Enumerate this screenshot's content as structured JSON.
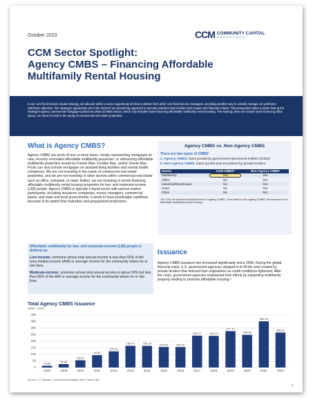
{
  "header": {
    "date": "October 2023",
    "logo_mark": "CCM",
    "logo_name": "COMMUNITY CAPITAL",
    "logo_sub": "MANAGEMENT"
  },
  "title": [
    "CCM Sector Spotlight:",
    "Agency CMBS – Financing Affordable",
    "Multifamily Rental Housing"
  ],
  "intro": "In our core fixed income impact strategy, we allocate within a sector opportunity set that is distinct from other core fixed income managers, providing another way to actively manage our portfolio's risk/return objective. Our strategy's opportunity set is the result of our pioneering approach to security selection that includes both impact and financial criteria. This perspective takes a closer look at the strategy's agency commercial mortgage-backed securities (CMBS) sector, which only includes loans financing affordable multifamily rental housing. The strategy does not include loans financing office space, nor does it invest in the equity of commercial real estate properties.",
  "what": {
    "heading": "What is Agency CMBS?",
    "body": "Agency CMBS are pools of one or more loans, mostly representing mortgages on new, recently renovated affordable multifamily properties, or refinancing affordable multifamily properties issued by Fannie Mae, Freddie Mac, and/or Ginnie Mae. Pools can also include mortgages on assisted living facilities and mental health complexes. We are not investing in the equity of commercial real estate properties, and we are not investing in other sectors within commercial real estate such as office, industrial, or retail. Rather, we are investing in bonds financing affordable multifamily rental housing properties for low- and moderate-income (LMI) people. Agency CMBS is typically a liquid sector with various market participants, including insurance companies, money managers, commercial banks, and state and local governments. It tends to have predictable cashflows because of its stated final maturities and prepayment protections."
  },
  "lmi_box": {
    "heading": "Affordable multifamily for low- and moderate-income (LMI) people is defined as:",
    "items": [
      {
        "term": "Low-income:",
        "text": "someone whose total annual income is less than 50% of the area median income (AMI) or average income for the community where he or she lives."
      },
      {
        "term": "Moderate-income:",
        "text": "someone whose total annual income is above 50% but less than 80% of the AMI or average income for the community where he or she lives."
      }
    ]
  },
  "comparison": {
    "heading": "Agency CMBS vs. Non-Agency CMBS",
    "subheading": "There are two types of CMBS¹",
    "types": [
      {
        "term": "1. Agency CMBS:",
        "text": "loans pooled by government-sponsored entities (GSEs)"
      },
      {
        "term": "2. Non-Agency CMBS:",
        "text": "loans pooled and securitized by private lenders"
      }
    ],
    "table": {
      "columns": [
        "Sector",
        "CCM CMBS*",
        "Non-Agency CMBS"
      ],
      "rows": [
        [
          "Multifamily",
          "Yes",
          "Yes"
        ],
        [
          "Office",
          "No",
          "Yes"
        ],
        [
          "Industrial/Warehouse",
          "No",
          "Yes"
        ],
        [
          "Hotel",
          "No",
          "Yes"
        ],
        [
          "Other",
          "No",
          "Yes"
        ]
      ]
    },
    "footnote": "*At CCM, we almost exclusively invest in agency CMBS. If we invest in non-agency CMBS, the exposure is to affordable multifamily rental housing."
  },
  "issuance": {
    "heading": "Issuance",
    "body": "Agency CMBS issuance has increased significantly since 2008. During the global financial crisis, U.S. government agencies stepped in to fill the void created by private lenders that reduced loan originations as credit conditions tightened. After the crisis, government agencies maintained their efforts by expanding multifamily property lending to promote affordable housing.²"
  },
  "chart": {
    "type": "bar",
    "title": "Total Agency CMBS Issuance",
    "subtitle": "2008 - 2022",
    "categories": [
      "2008",
      "2009",
      "2010",
      "2011",
      "2012",
      "2013",
      "2014",
      "2015",
      "2016",
      "2017",
      "2018",
      "2019",
      "2020",
      "2021",
      "2022"
    ],
    "values": [
      13.66,
      26.46,
      55.52,
      94.55,
      123.41,
      165.47,
      165.14,
      156.64,
      156.15,
      242.77,
      241.27,
      277.17,
      249.06,
      352.19,
      266.61
    ],
    "color": "#1f3d7a",
    "ylim": [
      0,
      400
    ],
    "yticks": [
      0,
      50,
      100,
      150,
      200,
      250,
      300,
      350,
      400
    ],
    "grid": true,
    "source": "Source: J.P. Morgan, Commercial Mortgage Alert, Fannie Mae"
  },
  "page_number": "1"
}
